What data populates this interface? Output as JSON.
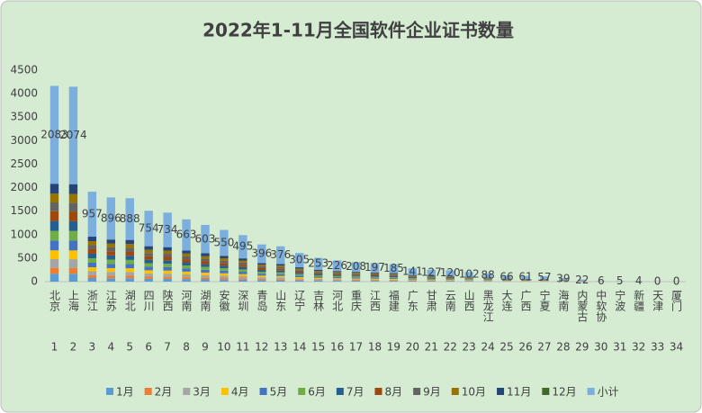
{
  "chart_data": {
    "type": "stacked_bar",
    "title": "2022年1-11月全国软件企业证书数量",
    "categories": [
      "北京",
      "上海",
      "浙江",
      "江苏",
      "湖北",
      "四川",
      "陕西",
      "河南",
      "湖南",
      "安徽",
      "深圳",
      "青岛",
      "山东",
      "辽宁",
      "吉林",
      "河北",
      "重庆",
      "江西",
      "福建",
      "广东",
      "甘肃",
      "云南",
      "山西",
      "黑龙江",
      "大连",
      "广西",
      "宁夏",
      "海南",
      "内蒙古",
      "中软协",
      "宁波",
      "新疆",
      "天津",
      "厦门"
    ],
    "ranks": [
      1,
      2,
      3,
      4,
      5,
      6,
      7,
      8,
      9,
      10,
      11,
      12,
      13,
      14,
      15,
      16,
      17,
      18,
      19,
      20,
      21,
      22,
      23,
      24,
      25,
      26,
      27,
      28,
      29,
      30,
      31,
      32,
      33,
      34
    ],
    "ylim": [
      0,
      4500
    ],
    "yticks": [
      0,
      500,
      1000,
      1500,
      2000,
      2500,
      3000,
      3500,
      4000,
      4500
    ],
    "grid": false,
    "legend": "bottom",
    "label_series": 12,
    "series": [
      {
        "name": "1月",
        "color": "#5b9bd5",
        "values": [
          167,
          166,
          77,
          72,
          71,
          60,
          59,
          53,
          48,
          44,
          40,
          32,
          30,
          24,
          20,
          18,
          17,
          16,
          15,
          11,
          10,
          10,
          8,
          7,
          5,
          5,
          5,
          3,
          2,
          0,
          0,
          0,
          0,
          0
        ]
      },
      {
        "name": "2月",
        "color": "#ed7d31",
        "values": [
          125,
          124,
          57,
          54,
          53,
          45,
          44,
          40,
          36,
          33,
          30,
          24,
          23,
          18,
          15,
          14,
          12,
          12,
          11,
          8,
          8,
          7,
          6,
          5,
          4,
          4,
          3,
          2,
          1,
          0,
          0,
          0,
          0,
          0
        ]
      },
      {
        "name": "3月",
        "color": "#a5a5a5",
        "values": [
          187,
          187,
          86,
          81,
          80,
          68,
          66,
          60,
          54,
          50,
          45,
          36,
          34,
          27,
          23,
          20,
          19,
          18,
          17,
          13,
          11,
          11,
          9,
          8,
          6,
          5,
          5,
          4,
          2,
          1,
          1,
          0,
          0,
          0
        ]
      },
      {
        "name": "4月",
        "color": "#ffc000",
        "values": [
          187,
          187,
          86,
          81,
          80,
          68,
          66,
          60,
          54,
          50,
          45,
          36,
          34,
          27,
          23,
          20,
          19,
          18,
          17,
          13,
          11,
          11,
          9,
          8,
          6,
          5,
          5,
          4,
          2,
          1,
          0,
          1,
          0,
          0
        ]
      },
      {
        "name": "5月",
        "color": "#4472c4",
        "values": [
          208,
          207,
          96,
          90,
          89,
          75,
          73,
          66,
          60,
          55,
          50,
          40,
          38,
          31,
          25,
          23,
          21,
          20,
          18,
          14,
          13,
          12,
          10,
          9,
          7,
          6,
          6,
          4,
          2,
          1,
          1,
          0,
          0,
          0
        ]
      },
      {
        "name": "6月",
        "color": "#70ad47",
        "values": [
          208,
          207,
          96,
          90,
          89,
          75,
          73,
          66,
          60,
          55,
          50,
          40,
          38,
          31,
          25,
          23,
          21,
          20,
          18,
          14,
          13,
          12,
          10,
          9,
          7,
          6,
          6,
          4,
          2,
          1,
          1,
          1,
          0,
          0
        ]
      },
      {
        "name": "7月",
        "color": "#255e91",
        "values": [
          208,
          207,
          96,
          90,
          89,
          75,
          73,
          66,
          60,
          55,
          50,
          40,
          38,
          31,
          25,
          23,
          21,
          20,
          18,
          14,
          13,
          12,
          10,
          9,
          7,
          6,
          6,
          4,
          2,
          0,
          0,
          0,
          0,
          0
        ]
      },
      {
        "name": "8月",
        "color": "#9e480e",
        "values": [
          208,
          207,
          96,
          90,
          89,
          75,
          73,
          66,
          60,
          55,
          50,
          40,
          38,
          31,
          25,
          23,
          21,
          20,
          18,
          14,
          13,
          12,
          10,
          9,
          7,
          6,
          6,
          4,
          2,
          1,
          1,
          1,
          0,
          0
        ]
      },
      {
        "name": "9月",
        "color": "#636363",
        "values": [
          187,
          187,
          86,
          81,
          80,
          68,
          66,
          60,
          54,
          50,
          45,
          36,
          34,
          27,
          23,
          20,
          19,
          18,
          17,
          13,
          11,
          11,
          9,
          8,
          6,
          5,
          5,
          4,
          2,
          1,
          0,
          0,
          0,
          0
        ]
      },
      {
        "name": "10月",
        "color": "#997300",
        "values": [
          187,
          187,
          86,
          81,
          80,
          68,
          66,
          60,
          54,
          50,
          45,
          36,
          34,
          27,
          23,
          20,
          19,
          18,
          17,
          13,
          11,
          11,
          9,
          8,
          6,
          5,
          5,
          4,
          2,
          0,
          1,
          1,
          0,
          0
        ]
      },
      {
        "name": "11月",
        "color": "#264478",
        "values": [
          211,
          208,
          95,
          86,
          88,
          77,
          75,
          66,
          63,
          53,
          45,
          36,
          35,
          31,
          26,
          22,
          19,
          17,
          19,
          14,
          13,
          11,
          12,
          8,
          5,
          8,
          5,
          2,
          3,
          0,
          0,
          0,
          0,
          0
        ]
      },
      {
        "name": "12月",
        "color": "#43682b",
        "values": [
          0,
          0,
          0,
          0,
          0,
          0,
          0,
          0,
          0,
          0,
          0,
          0,
          0,
          0,
          0,
          0,
          0,
          0,
          0,
          0,
          0,
          0,
          0,
          0,
          0,
          0,
          0,
          0,
          0,
          0,
          0,
          0,
          0,
          0
        ]
      },
      {
        "name": "小计",
        "color": "#7cafdd",
        "values": [
          2083,
          2074,
          957,
          896,
          888,
          754,
          734,
          663,
          603,
          550,
          495,
          396,
          376,
          305,
          253,
          226,
          208,
          197,
          185,
          141,
          127,
          120,
          102,
          88,
          66,
          61,
          57,
          39,
          22,
          6,
          5,
          4,
          0,
          0
        ]
      }
    ]
  }
}
